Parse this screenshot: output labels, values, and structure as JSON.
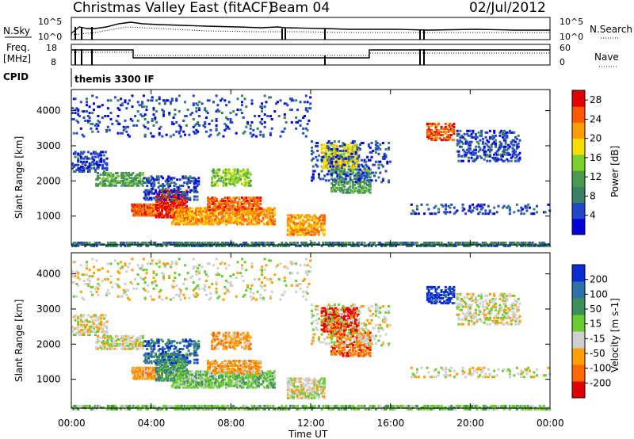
{
  "header": {
    "title": "Christmas Valley East (fitACF)",
    "beam": "Beam 04",
    "date": "02/Jul/2012",
    "program": "themis 3300 IF"
  },
  "labels": {
    "nsky": "N.Sky",
    "freq": "Freq.",
    "freq_unit": "[MHz]",
    "cpid": "CPID",
    "nsearch": "N.Search",
    "nave": "Nave",
    "nsky_top": "10^5",
    "nsky_bottom": "10^0",
    "freq_top": "18",
    "freq_bottom": "8",
    "nave_top": "60",
    "nave_bottom": "0"
  },
  "colors": {
    "power_scale": [
      "#0000d8",
      "#2446c8",
      "#3a7f66",
      "#4a9a50",
      "#7ccf2c",
      "#f5e000",
      "#ff9d00",
      "#ff5a00",
      "#e50000"
    ],
    "velocity_scale": [
      "#e00000",
      "#ff6a00",
      "#ff9f00",
      "#cfcfcf",
      "#6acb32",
      "#3f8f5a",
      "#2e70a8",
      "#0a2cd6"
    ]
  },
  "chart_data": [
    {
      "type": "heatmap",
      "name": "power",
      "ylabel": "Slant Range [km]",
      "xlabel": "Time UT",
      "xticks": [
        "00:00",
        "04:00",
        "08:00",
        "12:00",
        "16:00",
        "20:00",
        "00:00"
      ],
      "xlim": [
        0,
        24
      ],
      "ylim": [
        180,
        4600
      ],
      "yticks": [
        1000,
        2000,
        3000,
        4000
      ],
      "colorbar": {
        "label": "Power [dB]",
        "ticks": [
          4,
          8,
          12,
          16,
          20,
          24,
          28
        ],
        "range": [
          0,
          30
        ]
      }
    },
    {
      "type": "heatmap",
      "name": "velocity",
      "ylabel": "Slant Range [km]",
      "xlabel": "Time UT",
      "xticks": [
        "00:00",
        "04:00",
        "08:00",
        "12:00",
        "16:00",
        "20:00",
        "00:00"
      ],
      "xlim": [
        0,
        24
      ],
      "ylim": [
        180,
        4600
      ],
      "yticks": [
        1000,
        2000,
        3000,
        4000
      ],
      "colorbar": {
        "label": "Velocity [m s-1]",
        "ticks": [
          -200,
          -100,
          -50,
          -15,
          15,
          50,
          100,
          200
        ],
        "range": [
          -250,
          250
        ]
      }
    }
  ]
}
